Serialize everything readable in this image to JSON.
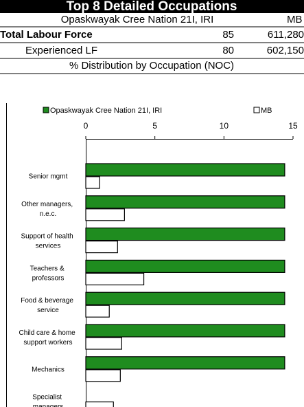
{
  "header": {
    "title": "Top 8 Detailed Occupations"
  },
  "table": {
    "columns": [
      "Opaskwayak Cree Nation 21I, IRI",
      "MB"
    ],
    "rows": [
      [
        "Total Labour Force",
        85,
        "611,280"
      ],
      [
        "Experienced LF",
        80,
        "602,150"
      ]
    ],
    "section": "% Distribution by Occupation (NOC)"
  },
  "chart_data": {
    "type": "bar",
    "orientation": "horizontal",
    "categories": [
      "Senior mgmt",
      "Other managers,\nn.e.c.",
      "Support of health\nservices",
      "Teachers &\nprofessors",
      "Food & beverage\nservice",
      "Child care & home\nsupport workers",
      "Mechanics",
      "Specialist\nmanagers"
    ],
    "series": [
      {
        "name": "Opaskwayak Cree Nation 21I, IRI",
        "color": "#1f8c1f",
        "values": [
          14.4,
          14.4,
          14.4,
          14.4,
          14.4,
          14.4,
          14.4,
          0
        ]
      },
      {
        "name": "MB",
        "color": "#ffffff",
        "values": [
          1.0,
          2.8,
          2.3,
          4.2,
          1.7,
          2.6,
          2.5,
          2.0
        ]
      }
    ],
    "xlim": [
      0,
      15
    ],
    "xticks": [
      0,
      5,
      10,
      15
    ]
  }
}
